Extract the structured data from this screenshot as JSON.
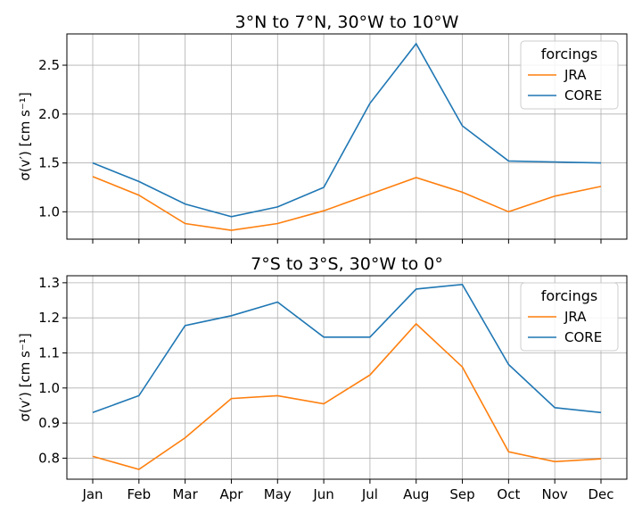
{
  "chart_data": [
    {
      "type": "line",
      "title": "3°N to 7°N, 30°W to 10°W",
      "ylabel": "σ(v′) [cm s⁻¹]",
      "xlabel": "",
      "categories": [
        "Jan",
        "Feb",
        "Mar",
        "Apr",
        "May",
        "Jun",
        "Jul",
        "Aug",
        "Sep",
        "Oct",
        "Nov",
        "Dec"
      ],
      "ylim": [
        0.72,
        2.82
      ],
      "yticks": [
        "1.0",
        "1.5",
        "2.0",
        "2.5"
      ],
      "grid": true,
      "legend": {
        "title": "forcings",
        "placement": "top-right"
      },
      "series": [
        {
          "name": "JRA",
          "color": "#ff7f0e",
          "values": [
            1.36,
            1.17,
            0.88,
            0.81,
            0.88,
            1.01,
            1.18,
            1.35,
            1.2,
            1.0,
            1.16,
            1.26
          ]
        },
        {
          "name": "CORE",
          "color": "#1f77b4",
          "values": [
            1.5,
            1.31,
            1.08,
            0.95,
            1.05,
            1.25,
            2.11,
            2.72,
            1.88,
            1.52,
            1.51,
            1.5
          ]
        }
      ]
    },
    {
      "type": "line",
      "title": "7°S to 3°S, 30°W to 0°",
      "ylabel": "σ(v′) [cm s⁻¹]",
      "xlabel": "",
      "categories": [
        "Jan",
        "Feb",
        "Mar",
        "Apr",
        "May",
        "Jun",
        "Jul",
        "Aug",
        "Sep",
        "Oct",
        "Nov",
        "Dec"
      ],
      "ylim": [
        0.74,
        1.32
      ],
      "yticks": [
        "0.8",
        "0.9",
        "1.0",
        "1.1",
        "1.2",
        "1.3"
      ],
      "grid": true,
      "legend": {
        "title": "forcings",
        "placement": "top-right"
      },
      "series": [
        {
          "name": "JRA",
          "color": "#ff7f0e",
          "values": [
            0.805,
            0.768,
            0.858,
            0.97,
            0.978,
            0.955,
            1.037,
            1.183,
            1.06,
            0.818,
            0.79,
            0.798
          ]
        },
        {
          "name": "CORE",
          "color": "#1f77b4",
          "values": [
            0.93,
            0.978,
            1.178,
            1.206,
            1.245,
            1.145,
            1.145,
            1.282,
            1.295,
            1.067,
            0.944,
            0.93
          ]
        }
      ]
    }
  ]
}
